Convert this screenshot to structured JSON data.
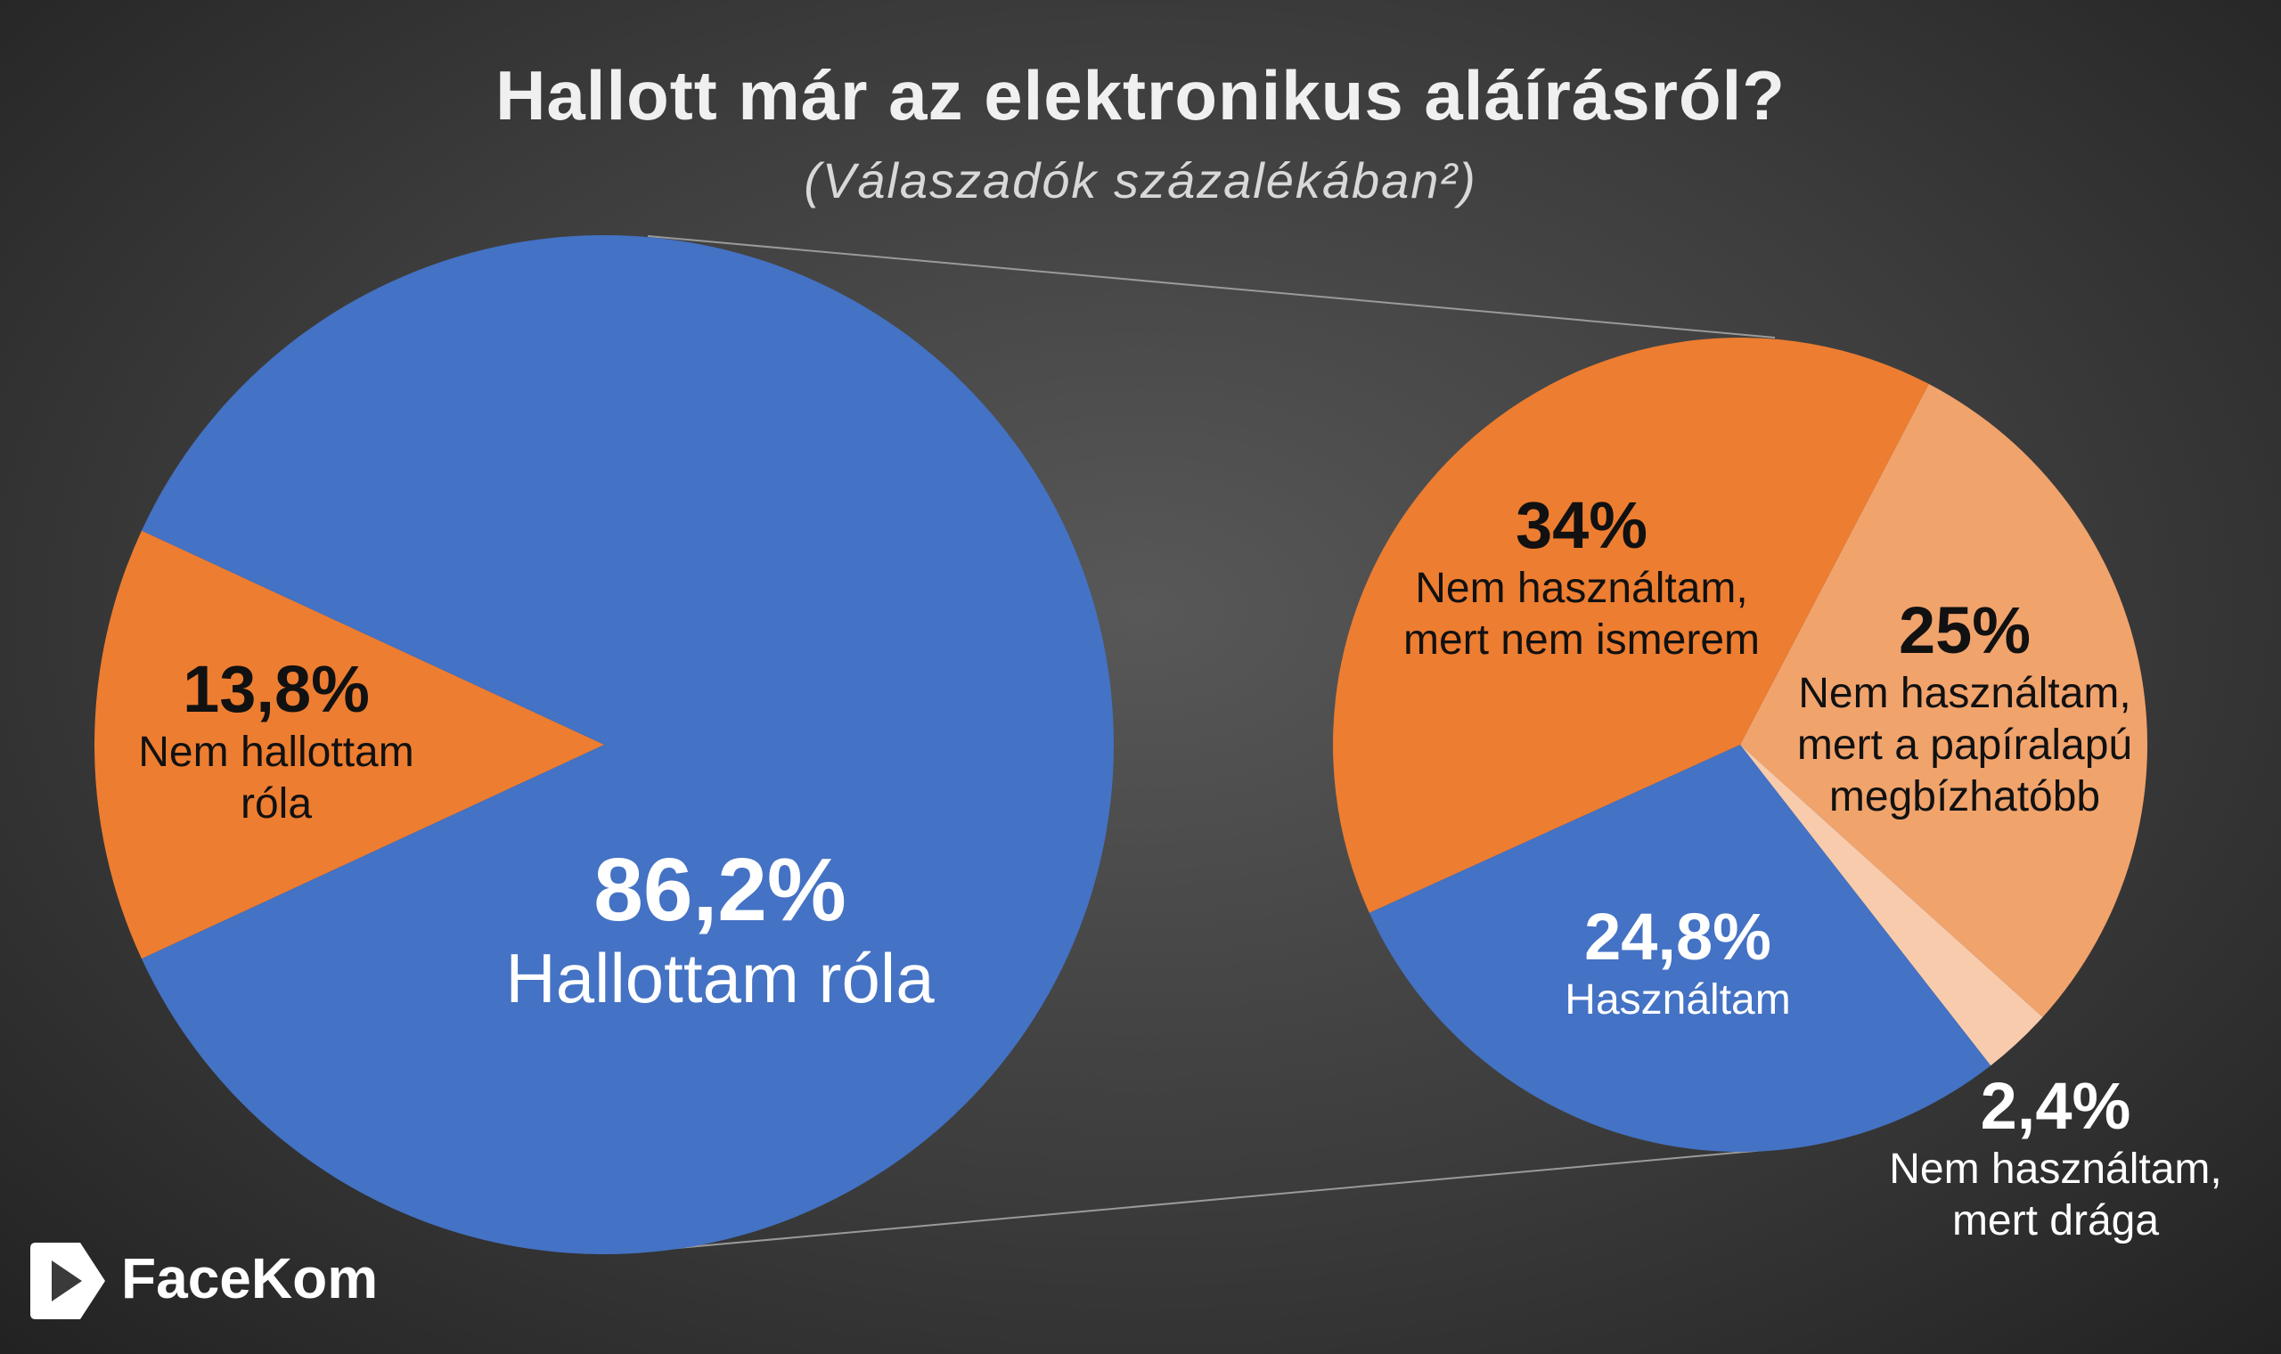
{
  "title": "Hallott már az elektronikus aláírásról?",
  "subtitle": "(Válaszadók százalékában²)",
  "logo": "FaceKom",
  "chart_data": [
    {
      "type": "pie",
      "categories": [
        "Hallottam róla",
        "Nem hallottam róla"
      ],
      "values": [
        86.2,
        13.8
      ],
      "value_labels": [
        "86,2%",
        "13,8%"
      ],
      "colors": [
        "#4472c4",
        "#ed7d31"
      ]
    },
    {
      "type": "pie",
      "categories": [
        "Nem használtam, mert a papíralapú megbízhatóbb",
        "Nem használtam, mert drága",
        "Használtam",
        "Nem használtam, mert nem ismerem"
      ],
      "values": [
        25,
        2.4,
        24.8,
        34
      ],
      "value_labels": [
        "25%",
        "2,4%",
        "24,8%",
        "34%"
      ],
      "colors": [
        "#f1a36c",
        "#f8cbad",
        "#4472c4",
        "#ed7d31"
      ]
    }
  ]
}
